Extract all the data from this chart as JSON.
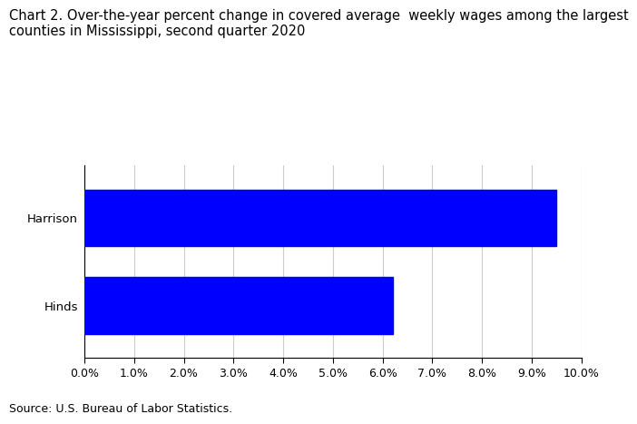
{
  "categories": [
    "Hinds",
    "Harrison"
  ],
  "values": [
    6.2,
    9.5
  ],
  "bar_color": "#0000ff",
  "title_line1": "Chart 2. Over-the-year percent change in covered average  weekly wages among the largest",
  "title_line2": "counties in Mississippi, second quarter 2020",
  "title_fontsize": 10.5,
  "xlim": [
    0,
    0.1
  ],
  "xtick_values": [
    0.0,
    0.01,
    0.02,
    0.03,
    0.04,
    0.05,
    0.06,
    0.07,
    0.08,
    0.09,
    0.1
  ],
  "xtick_labels": [
    "0.0%",
    "1.0%",
    "2.0%",
    "3.0%",
    "4.0%",
    "5.0%",
    "6.0%",
    "7.0%",
    "8.0%",
    "9.0%",
    "10.0%"
  ],
  "source_text": "Source: U.S. Bureau of Labor Statistics.",
  "tick_fontsize": 9,
  "label_fontsize": 9.5,
  "background_color": "#ffffff",
  "bar_height": 0.65,
  "grid_color": "#cccccc",
  "spine_color": "#000000"
}
